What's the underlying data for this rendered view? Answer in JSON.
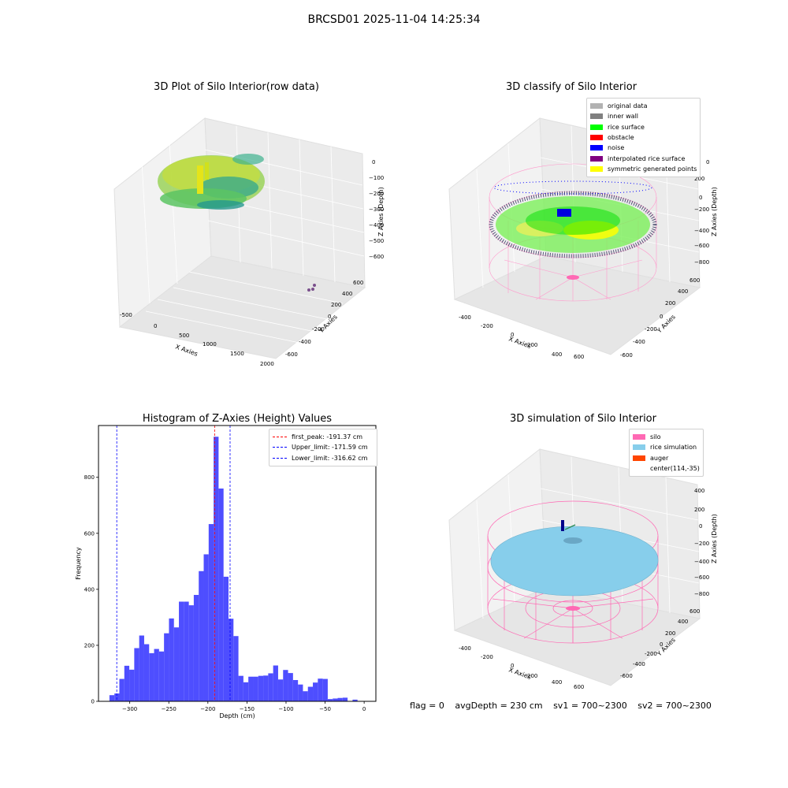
{
  "suptitle": "BRCSD01 2025-11-04 14:25:34",
  "colors": {
    "original": "#b2b2b2",
    "inner_wall": "#808080",
    "rice_surface": "#00ff00",
    "obstacle": "#ff0000",
    "noise": "#0000ff",
    "interpolated": "#800080",
    "symmetric": "#ffff00",
    "hist_bar": "#4444ff",
    "peak_line": "#ff0000",
    "limit_line": "#0000ff",
    "silo": "#ff69b4",
    "rice_sim": "#87ceeb",
    "auger": "#ff4500"
  },
  "panels": [
    {
      "title": "3D Plot of Silo Interior(row data)",
      "xlabel": "X Axies",
      "ylabel": "Y Axies",
      "zlabel": "Z Axies (Depth)",
      "x_ticks": [
        "-500",
        "0",
        "500",
        "1000",
        "1500",
        "2000"
      ],
      "y_ticks": [
        "-600",
        "-400",
        "-200",
        "0",
        "200",
        "400",
        "600"
      ],
      "z_ticks": [
        "0",
        "−100",
        "−200",
        "−300",
        "−400",
        "−500",
        "−600"
      ]
    },
    {
      "title": "3D classify of Silo Interior",
      "xlabel": "X Axies",
      "ylabel": "Y Axies",
      "zlabel": "Z Axies (Depth)",
      "x_ticks": [
        "-400",
        "-200",
        "0",
        "200",
        "400",
        "600"
      ],
      "y_ticks": [
        "-600",
        "-400",
        "-200",
        "0",
        "200",
        "400",
        "600"
      ],
      "z_ticks": [
        "200",
        "0",
        "−200",
        "−400",
        "−600",
        "−800"
      ],
      "z_top_tick": "0",
      "legend": [
        "original data",
        "inner wall",
        "rice surface",
        "obstacle",
        "noise",
        "interpolated rice surface",
        "symmetric generated points"
      ]
    },
    {
      "title": "3D simulation of Silo Interior",
      "xlabel": "X Axies",
      "ylabel": "Y Axies",
      "zlabel": "Z Axies (Depth)",
      "x_ticks": [
        "-400",
        "-200",
        "0",
        "200",
        "400",
        "600"
      ],
      "y_ticks": [
        "-600",
        "-400",
        "-200",
        "0",
        "200",
        "400",
        "600"
      ],
      "z_ticks": [
        "400",
        "200",
        "0",
        "−200",
        "−400",
        "−600",
        "−800"
      ],
      "legend": [
        "silo",
        "rice simulation",
        "auger",
        "center(114,-35)"
      ]
    }
  ],
  "status": {
    "flag": "flag = 0",
    "avg_depth": "avgDepth = 230 cm",
    "sv1": "sv1 = 700~2300",
    "sv2": "sv2 = 700~2300"
  },
  "chart_data": [
    {
      "type": "histogram",
      "title": "Histogram of Z-Axies (Height) Values",
      "xlabel": "Depth (cm)",
      "ylabel": "Frequency",
      "xlim": [
        -340,
        15
      ],
      "ylim": [
        0,
        985
      ],
      "x_ticks": [
        -300,
        -250,
        -200,
        -150,
        -100,
        -50,
        0
      ],
      "y_ticks": [
        0,
        200,
        400,
        600,
        800
      ],
      "bin_width": 6.35,
      "bin_start": -326,
      "counts": [
        22,
        28,
        80,
        127,
        113,
        190,
        235,
        204,
        172,
        187,
        178,
        243,
        296,
        264,
        356,
        356,
        343,
        380,
        465,
        525,
        633,
        945,
        760,
        445,
        295,
        233,
        91,
        68,
        88,
        88,
        91,
        92,
        100,
        128,
        78,
        112,
        101,
        76,
        60,
        36,
        52,
        67,
        81,
        80,
        8,
        10,
        12,
        13,
        0,
        6
      ],
      "vlines": [
        {
          "label": "first_peak: -191.37 cm",
          "x": -191.37,
          "color": "#ff0000"
        },
        {
          "label": "Upper_limit: -171.59 cm",
          "x": -171.59,
          "color": "#0000ff"
        },
        {
          "label": "Lower_limit: -316.62 cm",
          "x": -316.62,
          "color": "#0000ff"
        }
      ],
      "legend_position": "top-right"
    }
  ]
}
